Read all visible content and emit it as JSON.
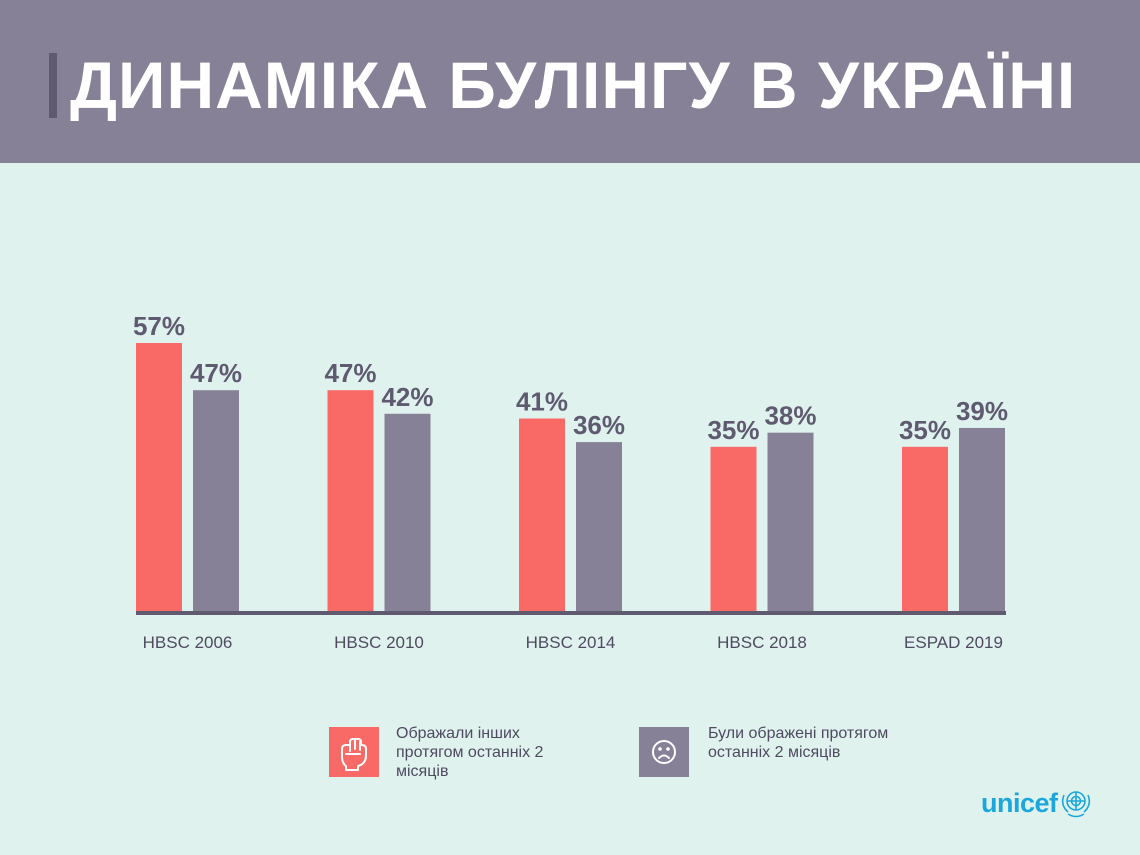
{
  "title": "ДИНАМІКА БУЛІНГУ В УКРАЇНІ",
  "colors": {
    "header_bg": "#878197",
    "background": "#dff2ee",
    "series_bullied_others": "#f96a66",
    "series_were_bullied": "#878197",
    "value_label": "#5f5a70",
    "logo": "#1ca7dc"
  },
  "legend": {
    "item1": "Ображали інших протягом останніх 2 місяців",
    "item2": "Були ображені протягом останніх 2 місяців",
    "item1_icon": "fist-icon",
    "item2_icon": "sad-face-icon"
  },
  "logo": {
    "text": "unicef",
    "icon": "un-emblem-icon"
  },
  "chart_data": {
    "type": "bar",
    "title": "ДИНАМІКА БУЛІНГУ В УКРАЇНІ",
    "categories": [
      "HBSC 2006",
      "HBSC 2010",
      "HBSC 2014",
      "HBSC 2018",
      "ESPAD 2019"
    ],
    "series": [
      {
        "name": "Ображали інших протягом останніх 2 місяців",
        "values": [
          57,
          47,
          41,
          35,
          35
        ],
        "labels": [
          "57%",
          "47%",
          "41%",
          "35%",
          "35%"
        ]
      },
      {
        "name": "Були ображені протягом останніх 2 місяців",
        "values": [
          47,
          42,
          36,
          38,
          39
        ],
        "labels": [
          "47%",
          "42%",
          "36%",
          "38%",
          "39%"
        ]
      }
    ],
    "ylim": [
      0,
      57
    ],
    "unit": "%",
    "grid": false,
    "legend_placement": "bottom"
  }
}
